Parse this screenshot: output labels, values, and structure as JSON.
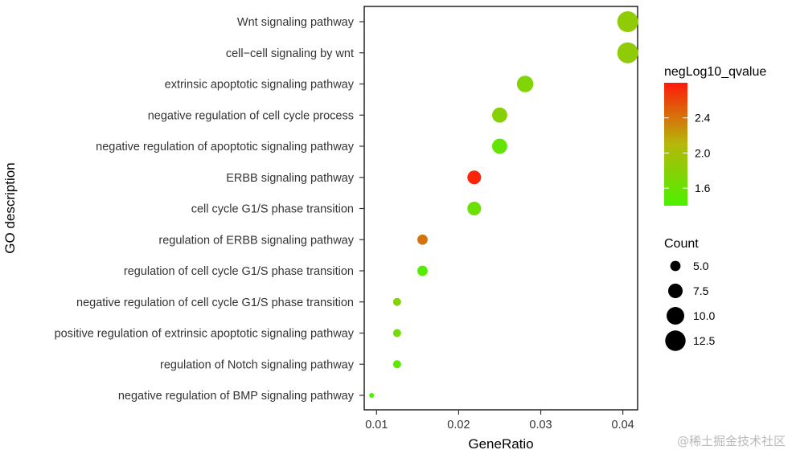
{
  "chart_data": {
    "type": "scatter",
    "title": "",
    "xlabel": "GeneRatio",
    "ylabel": "GO description",
    "xlim": [
      0.0085,
      0.0418
    ],
    "xticks": [
      0.01,
      0.02,
      0.03,
      0.04
    ],
    "xtick_labels": [
      "0.01",
      "0.02",
      "0.03",
      "0.04"
    ],
    "categories": [
      "Wnt signaling pathway",
      "cell−cell signaling by wnt",
      "extrinsic apoptotic signaling pathway",
      "negative regulation of cell cycle process",
      "negative regulation of apoptotic signaling pathway",
      "ERBB signaling pathway",
      "cell cycle G1/S phase transition",
      "regulation of ERBB signaling pathway",
      "regulation of cell cycle G1/S phase transition",
      "negative regulation of cell cycle G1/S phase transition",
      "positive regulation of extrinsic apoptotic signaling pathway",
      "regulation of Notch signaling pathway",
      "negative regulation of BMP signaling pathway"
    ],
    "points": [
      {
        "term": "Wnt signaling pathway",
        "gene_ratio": 0.0406,
        "count": 13,
        "neg_log10_qvalue": 1.85
      },
      {
        "term": "cell−cell signaling by wnt",
        "gene_ratio": 0.0406,
        "count": 13,
        "neg_log10_qvalue": 1.85
      },
      {
        "term": "extrinsic apoptotic signaling pathway",
        "gene_ratio": 0.0281,
        "count": 9,
        "neg_log10_qvalue": 1.75
      },
      {
        "term": "negative regulation of cell cycle process",
        "gene_ratio": 0.025,
        "count": 8,
        "neg_log10_qvalue": 1.8
      },
      {
        "term": "negative regulation of apoptotic signaling pathway",
        "gene_ratio": 0.025,
        "count": 8,
        "neg_log10_qvalue": 1.55
      },
      {
        "term": "ERBB signaling pathway",
        "gene_ratio": 0.0219,
        "count": 7,
        "neg_log10_qvalue": 2.75
      },
      {
        "term": "cell cycle G1/S phase transition",
        "gene_ratio": 0.0219,
        "count": 7,
        "neg_log10_qvalue": 1.6
      },
      {
        "term": "regulation of ERBB signaling pathway",
        "gene_ratio": 0.0156,
        "count": 5,
        "neg_log10_qvalue": 2.4
      },
      {
        "term": "regulation of cell cycle G1/S phase transition",
        "gene_ratio": 0.0156,
        "count": 5,
        "neg_log10_qvalue": 1.45
      },
      {
        "term": "negative regulation of cell cycle G1/S phase transition",
        "gene_ratio": 0.0125,
        "count": 4,
        "neg_log10_qvalue": 1.8
      },
      {
        "term": "positive regulation of extrinsic apoptotic signaling pathway",
        "gene_ratio": 0.0125,
        "count": 4,
        "neg_log10_qvalue": 1.65
      },
      {
        "term": "regulation of Notch signaling pathway",
        "gene_ratio": 0.0125,
        "count": 4,
        "neg_log10_qvalue": 1.5
      },
      {
        "term": "negative regulation of BMP signaling pathway",
        "gene_ratio": 0.0094,
        "count": 3,
        "neg_log10_qvalue": 1.4
      }
    ],
    "color_legend": {
      "title": "negLog10_qvalue",
      "min": 1.4,
      "max": 2.8,
      "ticks": [
        1.6,
        2.0,
        2.4
      ],
      "tick_labels": [
        "1.6",
        "2.0",
        "2.4"
      ],
      "low_color": "#4cf000",
      "mid_color": "#b5b80a",
      "high_color": "#ff1a0a"
    },
    "size_legend": {
      "title": "Count",
      "values": [
        5.0,
        7.5,
        10.0,
        12.5
      ],
      "labels": [
        "5.0",
        "7.5",
        "10.0",
        "12.5"
      ],
      "color": "#000000"
    },
    "count_range": [
      3,
      13
    ],
    "grid": false,
    "legend_position": "right"
  },
  "watermark": "@稀土掘金技术社区"
}
